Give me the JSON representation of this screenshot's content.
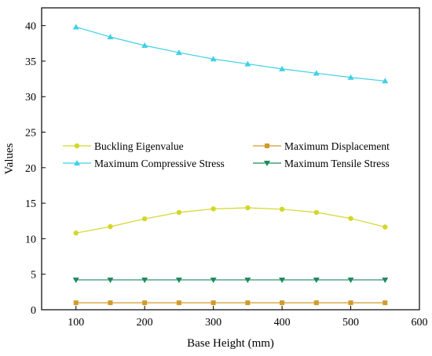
{
  "chart_data": {
    "type": "line",
    "xlabel": "Base Height (mm)",
    "ylabel": "Values",
    "xlim": [
      50,
      600
    ],
    "ylim": [
      0,
      42.5
    ],
    "xticks": [
      "100",
      "200",
      "300",
      "400",
      "500",
      "600"
    ],
    "yticks": [
      "0",
      "5",
      "10",
      "15",
      "20",
      "25",
      "30",
      "35",
      "40"
    ],
    "x": [
      100,
      150,
      200,
      250,
      300,
      350,
      400,
      450,
      500,
      550
    ],
    "grid": false,
    "legend_position": "middle",
    "series": [
      {
        "name": "Buckling Eigenvalue",
        "color": "#d4d629",
        "marker": "circle",
        "values": [
          10.8,
          11.7,
          12.8,
          13.7,
          14.2,
          14.35,
          14.15,
          13.7,
          12.85,
          11.65
        ]
      },
      {
        "name": "Maximum Displacement",
        "color": "#d19a2a",
        "marker": "square",
        "values": [
          0.98,
          0.98,
          0.98,
          0.98,
          0.98,
          0.98,
          0.98,
          0.98,
          0.98,
          0.98
        ]
      },
      {
        "name": "Maximum Compressive Stress",
        "color": "#3ed1e6",
        "marker": "triangle-up",
        "values": [
          39.8,
          38.4,
          37.2,
          36.2,
          35.3,
          34.6,
          33.9,
          33.3,
          32.7,
          32.2
        ]
      },
      {
        "name": "Maximum Tensile Stress",
        "color": "#1f8a5e",
        "marker": "triangle-down",
        "values": [
          4.2,
          4.2,
          4.2,
          4.2,
          4.2,
          4.2,
          4.2,
          4.2,
          4.2,
          4.2
        ]
      }
    ]
  }
}
